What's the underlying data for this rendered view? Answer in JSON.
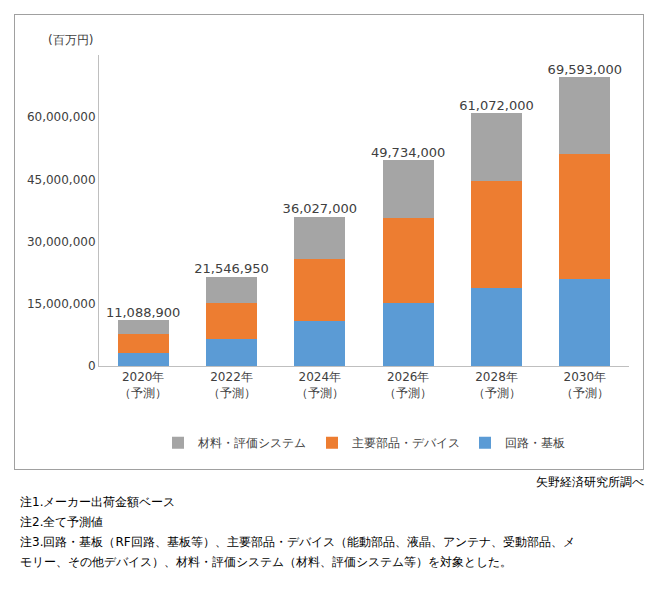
{
  "chart_data": {
    "type": "bar",
    "stacked": true,
    "y_label": "(百万円)",
    "categories": [
      "2020年\n（予測）",
      "2022年\n（予測）",
      "2024年\n（予測）",
      "2026年\n（予測）",
      "2028年\n（予測）",
      "2030年\n（予測）"
    ],
    "series": [
      {
        "name": "回路・基板",
        "color": "#5b9bd5",
        "values": [
          3100000,
          6500000,
          10900000,
          15100000,
          18800000,
          20900000
        ]
      },
      {
        "name": "主要部品・デバイス",
        "color": "#ed7d31",
        "values": [
          4700000,
          8800000,
          14800000,
          20700000,
          25700000,
          30300000
        ]
      },
      {
        "name": "材料・評価システム",
        "color": "#a5a5a5",
        "values": [
          3288900,
          6246950,
          10327000,
          13934000,
          16572000,
          18393000
        ]
      }
    ],
    "totals": [
      11088900,
      21546950,
      36027000,
      49734000,
      61072000,
      69593000
    ],
    "total_labels": [
      "11,088,900",
      "21,546,950",
      "36,027,000",
      "49,734,000",
      "61,072,000",
      "69,593,000"
    ],
    "ylim": [
      0,
      75000000
    ],
    "yticks": [
      0,
      {
        "value": 15000000,
        "label": "15,000,000"
      },
      {
        "value": 30000000,
        "label": "30,000,000"
      },
      {
        "value": 45000000,
        "label": "45,000,000"
      },
      {
        "value": 60000000,
        "label": "60,000,000"
      }
    ],
    "grid": false,
    "legend": "bottom",
    "source": "矢野経済研究所調べ",
    "notes": [
      "注1.メーカー出荷金額ベース",
      "注2.全て予測値",
      "注3.回路・基板（RF回路、基板等）、主要部品・デバイス（能動部品、液晶、アンテナ、受動部品、メモリー、その他デバイス）、材料・評価システム（材料、評価システム等）を対象とした。"
    ]
  }
}
